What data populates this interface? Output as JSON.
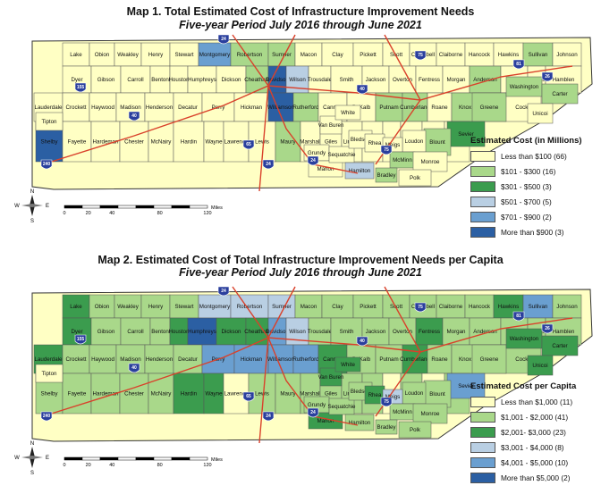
{
  "map1": {
    "title": "Map 1.  Total Estimated Cost of Infrastructure Improvement Needs",
    "subtitle": "Five-year Period July 2016 through June 2021",
    "legend_title": "Estimated Cost (in Millions)",
    "legend": [
      {
        "label": "Less than $100 (66)",
        "color": "#ffffc4"
      },
      {
        "label": "$101 - $300 (16)",
        "color": "#a9d88a"
      },
      {
        "label": "$301 - $500 (3)",
        "color": "#3b9c4e"
      },
      {
        "label": "$501 - $700 (5)",
        "color": "#b9cfe3"
      },
      {
        "label": "$701 - $900 (2)",
        "color": "#6a9fd0"
      },
      {
        "label": "More than $900 (3)",
        "color": "#2b5fa3"
      }
    ]
  },
  "map2": {
    "title": "Map 2.  Estimated Cost of Total Infrastructure Improvement Needs per Capita",
    "subtitle": "Five-year Period July 2016 through June 2021",
    "legend_title": "Estimated Cost per Capita",
    "legend": [
      {
        "label": "Less than $1,000 (11)",
        "color": "#ffffc4"
      },
      {
        "label": "$1,001 - $2,000 (41)",
        "color": "#a9d88a"
      },
      {
        "label": "$2,001- $3,000 (23)",
        "color": "#3b9c4e"
      },
      {
        "label": "$3,001 - $4,000 (8)",
        "color": "#b9cfe3"
      },
      {
        "label": "$4,001 - $5,000 (10)",
        "color": "#6a9fd0"
      },
      {
        "label": "More than $5,000 (2)",
        "color": "#2b5fa3"
      }
    ]
  },
  "scale": {
    "ticks": [
      "0",
      "20",
      "40",
      "80",
      "120"
    ],
    "unit": "Miles"
  },
  "compass": {
    "north": "N",
    "south": "S",
    "east": "E",
    "west": "W"
  },
  "interstates": [
    "155",
    "40",
    "24",
    "65",
    "40",
    "75",
    "24",
    "81",
    "26",
    "75",
    "240",
    "24"
  ],
  "counties": [
    {
      "name": "Lake",
      "c1": "#ffffc4",
      "c2": "#3b9c4e"
    },
    {
      "name": "Obion",
      "c1": "#ffffc4",
      "c2": "#a9d88a"
    },
    {
      "name": "Weakley",
      "c1": "#ffffc4",
      "c2": "#a9d88a"
    },
    {
      "name": "Henry",
      "c1": "#ffffc4",
      "c2": "#a9d88a"
    },
    {
      "name": "Stewart",
      "c1": "#ffffc4",
      "c2": "#a9d88a"
    },
    {
      "name": "Montgomery",
      "c1": "#6a9fd0",
      "c2": "#b9cfe3"
    },
    {
      "name": "Robertson",
      "c1": "#a9d88a",
      "c2": "#b9cfe3"
    },
    {
      "name": "Sumner",
      "c1": "#a9d88a",
      "c2": "#b9cfe3"
    },
    {
      "name": "Macon",
      "c1": "#ffffc4",
      "c2": "#a9d88a"
    },
    {
      "name": "Clay",
      "c1": "#ffffc4",
      "c2": "#a9d88a"
    },
    {
      "name": "Pickett",
      "c1": "#ffffc4",
      "c2": "#a9d88a"
    },
    {
      "name": "Scott",
      "c1": "#ffffc4",
      "c2": "#a9d88a"
    },
    {
      "name": "Campbell",
      "c1": "#ffffc4",
      "c2": "#a9d88a"
    },
    {
      "name": "Claiborne",
      "c1": "#ffffc4",
      "c2": "#a9d88a"
    },
    {
      "name": "Hancock",
      "c1": "#ffffc4",
      "c2": "#a9d88a"
    },
    {
      "name": "Hawkins",
      "c1": "#ffffc4",
      "c2": "#3b9c4e"
    },
    {
      "name": "Sullivan",
      "c1": "#a9d88a",
      "c2": "#6a9fd0"
    },
    {
      "name": "Johnson",
      "c1": "#ffffc4",
      "c2": "#a9d88a"
    },
    {
      "name": "Dyer",
      "c1": "#ffffc4",
      "c2": "#3b9c4e"
    },
    {
      "name": "Gibson",
      "c1": "#ffffc4",
      "c2": "#a9d88a"
    },
    {
      "name": "Carroll",
      "c1": "#ffffc4",
      "c2": "#a9d88a"
    },
    {
      "name": "Benton",
      "c1": "#ffffc4",
      "c2": "#a9d88a"
    },
    {
      "name": "Houston",
      "c1": "#ffffc4",
      "c2": "#3b9c4e"
    },
    {
      "name": "Humphreys",
      "c1": "#ffffc4",
      "c2": "#2b5fa3"
    },
    {
      "name": "Dickson",
      "c1": "#ffffc4",
      "c2": "#3b9c4e"
    },
    {
      "name": "Cheatham",
      "c1": "#a9d88a",
      "c2": "#3b9c4e"
    },
    {
      "name": "Davidson",
      "c1": "#2b5fa3",
      "c2": "#6a9fd0"
    },
    {
      "name": "Wilson",
      "c1": "#b9cfe3",
      "c2": "#b9cfe3"
    },
    {
      "name": "Trousdale",
      "c1": "#ffffc4",
      "c2": "#a9d88a"
    },
    {
      "name": "Smith",
      "c1": "#ffffc4",
      "c2": "#a9d88a"
    },
    {
      "name": "Jackson",
      "c1": "#ffffc4",
      "c2": "#a9d88a"
    },
    {
      "name": "Overton",
      "c1": "#ffffc4",
      "c2": "#a9d88a"
    },
    {
      "name": "Fentress",
      "c1": "#ffffc4",
      "c2": "#3b9c4e"
    },
    {
      "name": "Morgan",
      "c1": "#ffffc4",
      "c2": "#a9d88a"
    },
    {
      "name": "Anderson",
      "c1": "#a9d88a",
      "c2": "#a9d88a"
    },
    {
      "name": "Union",
      "c1": "#ffffc4",
      "c2": "#a9d88a"
    },
    {
      "name": "Grainger",
      "c1": "#ffffc4",
      "c2": "#a9d88a"
    },
    {
      "name": "Hamblen",
      "c1": "#ffffc4",
      "c2": "#a9d88a"
    },
    {
      "name": "Greene",
      "c1": "#a9d88a",
      "c2": "#a9d88a"
    },
    {
      "name": "Washington",
      "c1": "#a9d88a",
      "c2": "#3b9c4e"
    },
    {
      "name": "Carter",
      "c1": "#a9d88a",
      "c2": "#3b9c4e"
    },
    {
      "name": "Unicoi",
      "c1": "#ffffc4",
      "c2": "#3b9c4e"
    },
    {
      "name": "Lauderdale",
      "c1": "#ffffc4",
      "c2": "#3b9c4e"
    },
    {
      "name": "Crockett",
      "c1": "#ffffc4",
      "c2": "#a9d88a"
    },
    {
      "name": "Haywood",
      "c1": "#ffffc4",
      "c2": "#a9d88a"
    },
    {
      "name": "Madison",
      "c1": "#ffffc4",
      "c2": "#a9d88a"
    },
    {
      "name": "Henderson",
      "c1": "#ffffc4",
      "c2": "#a9d88a"
    },
    {
      "name": "Decatur",
      "c1": "#ffffc4",
      "c2": "#a9d88a"
    },
    {
      "name": "Perry",
      "c1": "#ffffc4",
      "c2": "#6a9fd0"
    },
    {
      "name": "Hickman",
      "c1": "#ffffc4",
      "c2": "#6a9fd0"
    },
    {
      "name": "Williamson",
      "c1": "#2b5fa3",
      "c2": "#6a9fd0"
    },
    {
      "name": "Rutherford",
      "c1": "#a9d88a",
      "c2": "#6a9fd0"
    },
    {
      "name": "Cannon",
      "c1": "#ffffc4",
      "c2": "#3b9c4e"
    },
    {
      "name": "DeKalb",
      "c1": "#ffffc4",
      "c2": "#a9d88a"
    },
    {
      "name": "Putnam",
      "c1": "#a9d88a",
      "c2": "#a9d88a"
    },
    {
      "name": "Cumberland",
      "c1": "#a9d88a",
      "c2": "#3b9c4e"
    },
    {
      "name": "Roane",
      "c1": "#ffffc4",
      "c2": "#a9d88a"
    },
    {
      "name": "Knox",
      "c1": "#a9d88a",
      "c2": "#a9d88a"
    },
    {
      "name": "Jefferson",
      "c1": "#ffffc4",
      "c2": "#a9d88a"
    },
    {
      "name": "Cocke",
      "c1": "#ffffc4",
      "c2": "#a9d88a"
    },
    {
      "name": "Sevier",
      "c1": "#3b9c4e",
      "c2": "#6a9fd0"
    },
    {
      "name": "Blount",
      "c1": "#a9d88a",
      "c2": "#a9d88a"
    },
    {
      "name": "Loudon",
      "c1": "#ffffc4",
      "c2": "#a9d88a"
    },
    {
      "name": "Tipton",
      "c1": "#ffffc4",
      "c2": "#ffffc4"
    },
    {
      "name": "Shelby",
      "c1": "#2b5fa3",
      "c2": "#a9d88a"
    },
    {
      "name": "Fayette",
      "c1": "#ffffc4",
      "c2": "#a9d88a"
    },
    {
      "name": "Hardeman",
      "c1": "#ffffc4",
      "c2": "#a9d88a"
    },
    {
      "name": "Chester",
      "c1": "#ffffc4",
      "c2": "#a9d88a"
    },
    {
      "name": "McNairy",
      "c1": "#ffffc4",
      "c2": "#a9d88a"
    },
    {
      "name": "Hardin",
      "c1": "#ffffc4",
      "c2": "#3b9c4e"
    },
    {
      "name": "Wayne",
      "c1": "#ffffc4",
      "c2": "#3b9c4e"
    },
    {
      "name": "Lawrence",
      "c1": "#ffffc4",
      "c2": "#ffffc4"
    },
    {
      "name": "Lewis",
      "c1": "#ffffc4",
      "c2": "#a9d88a"
    },
    {
      "name": "Maury",
      "c1": "#a9d88a",
      "c2": "#a9d88a"
    },
    {
      "name": "Marshall",
      "c1": "#ffffc4",
      "c2": "#a9d88a"
    },
    {
      "name": "Giles",
      "c1": "#ffffc4",
      "c2": "#a9d88a"
    },
    {
      "name": "Lincoln",
      "c1": "#ffffc4",
      "c2": "#a9d88a"
    },
    {
      "name": "Bedford",
      "c1": "#ffffc4",
      "c2": "#a9d88a"
    },
    {
      "name": "Moore",
      "c1": "#ffffc4",
      "c2": "#ffffc4"
    },
    {
      "name": "Coffee",
      "c1": "#ffffc4",
      "c2": "#a9d88a"
    },
    {
      "name": "Franklin",
      "c1": "#ffffc4",
      "c2": "#ffffc4"
    },
    {
      "name": "Warren",
      "c1": "#ffffc4",
      "c2": "#a9d88a"
    },
    {
      "name": "Van Buren",
      "c1": "#ffffc4",
      "c2": "#3b9c4e"
    },
    {
      "name": "White",
      "c1": "#ffffc4",
      "c2": "#3b9c4e"
    },
    {
      "name": "Grundy",
      "c1": "#ffffc4",
      "c2": "#a9d88a"
    },
    {
      "name": "Marion",
      "c1": "#ffffc4",
      "c2": "#3b9c4e"
    },
    {
      "name": "Sequatchie",
      "c1": "#ffffc4",
      "c2": "#a9d88a"
    },
    {
      "name": "Bledsoe",
      "c1": "#ffffc4",
      "c2": "#a9d88a"
    },
    {
      "name": "Rhea",
      "c1": "#ffffc4",
      "c2": "#3b9c4e"
    },
    {
      "name": "Meigs",
      "c1": "#ffffc4",
      "c2": "#b9cfe3"
    },
    {
      "name": "McMinn",
      "c1": "#a9d88a",
      "c2": "#a9d88a"
    },
    {
      "name": "Monroe",
      "c1": "#ffffc4",
      "c2": "#a9d88a"
    },
    {
      "name": "Hamilton",
      "c1": "#b9cfe3",
      "c2": "#a9d88a"
    },
    {
      "name": "Bradley",
      "c1": "#a9d88a",
      "c2": "#a9d88a"
    },
    {
      "name": "Polk",
      "c1": "#ffffc4",
      "c2": "#a9d88a"
    }
  ]
}
